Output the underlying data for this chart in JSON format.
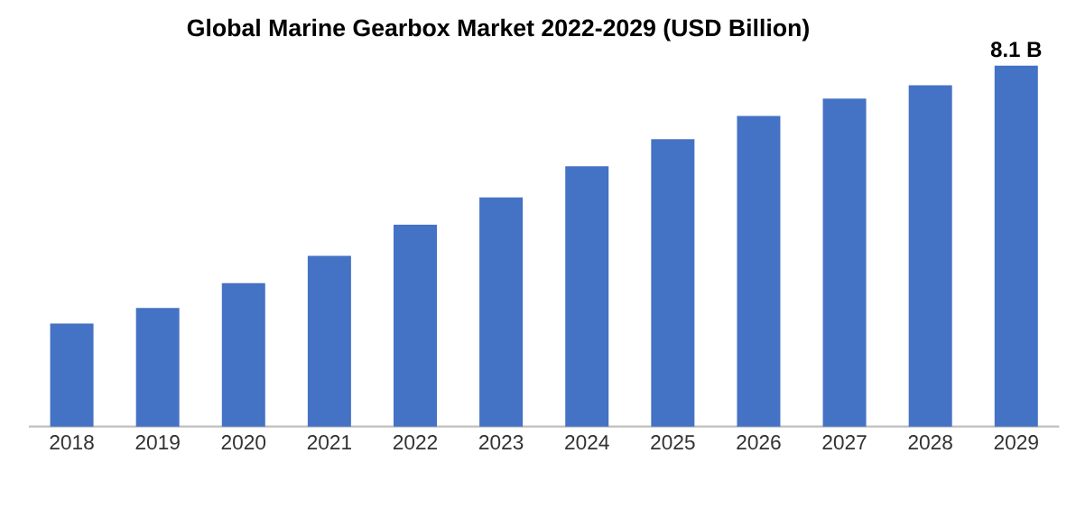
{
  "chart_data": {
    "type": "bar",
    "title": "Global Marine Gearbox Market 2022-2029 (USD Billion)",
    "categories": [
      "2018",
      "2019",
      "2020",
      "2021",
      "2022",
      "2023",
      "2024",
      "2025",
      "2026",
      "2027",
      "2028",
      "2029"
    ],
    "values": [
      2.31,
      2.66,
      3.22,
      3.83,
      4.53,
      5.14,
      5.84,
      6.45,
      6.97,
      7.36,
      7.66,
      8.1
    ],
    "value_labels": [
      null,
      null,
      null,
      null,
      null,
      null,
      null,
      null,
      null,
      null,
      null,
      "8.1 B"
    ],
    "color": "#4472c4",
    "tick_labels": "x"
  }
}
